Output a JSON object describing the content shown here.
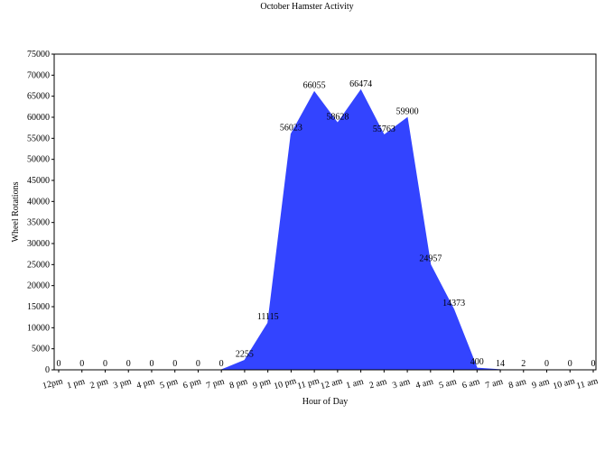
{
  "chart_data": {
    "type": "area",
    "title": "October Hamster Activity",
    "x_label": "Hour of Day",
    "y_label": "Wheel Rotations",
    "categories": [
      "12pm",
      "1 pm",
      "2 pm",
      "3 pm",
      "4 pm",
      "5 pm",
      "6 pm",
      "7 pm",
      "8 pm",
      "9 pm",
      "10 pm",
      "11 pm",
      "12 am",
      "1 am",
      "2 am",
      "3 am",
      "4 am",
      "5 am",
      "6 am",
      "7 am",
      "8 am",
      "9 am",
      "10 am",
      "11 am"
    ],
    "values": [
      0,
      0,
      0,
      0,
      0,
      0,
      0,
      0,
      2255,
      11115,
      56023,
      66055,
      58628,
      66474,
      55763,
      59900,
      24957,
      14373,
      400,
      14,
      2,
      0,
      0,
      0
    ],
    "color": "#3344ff",
    "ylim": [
      0,
      75000
    ],
    "yticks": [
      0,
      5000,
      10000,
      15000,
      20000,
      25000,
      30000,
      35000,
      40000,
      45000,
      50000,
      55000,
      60000,
      65000,
      70000,
      75000
    ],
    "grid": false
  }
}
